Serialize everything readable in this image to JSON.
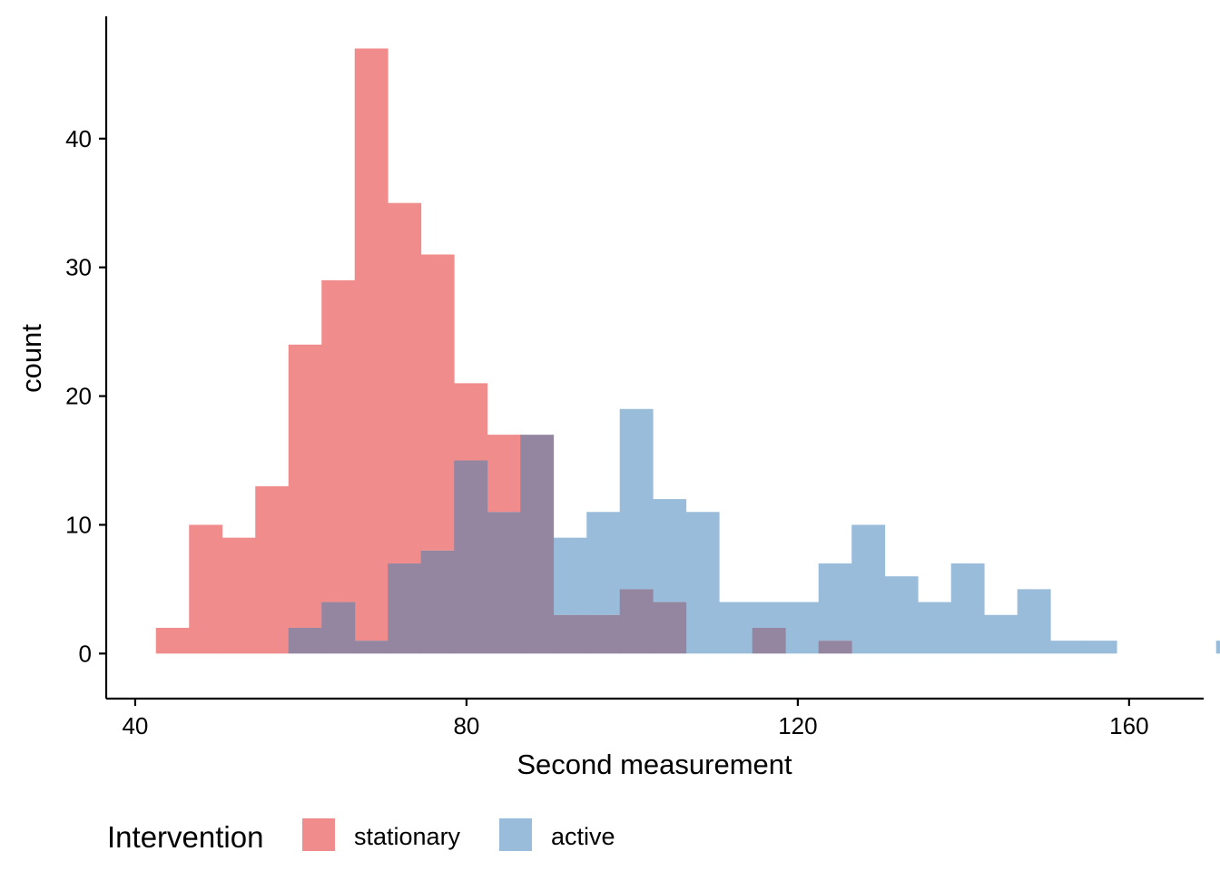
{
  "chart_data": {
    "type": "bar",
    "subtype": "overlapping-histogram",
    "title": "",
    "xlabel": "Second measurement",
    "ylabel": "count",
    "xlim": [
      36.5,
      169
    ],
    "ylim": [
      -3.5,
      49.5
    ],
    "x_ticks": [
      40,
      80,
      120,
      160
    ],
    "y_ticks": [
      0,
      10,
      20,
      30,
      40
    ],
    "grid": false,
    "bin_width": 4,
    "bin_start": 42.5,
    "legend": {
      "title": "Intervention",
      "position": "bottom"
    },
    "series": [
      {
        "name": "stationary",
        "color": "#F08C8C",
        "values": [
          2,
          10,
          9,
          13,
          24,
          29,
          47,
          35,
          31,
          21,
          17,
          17,
          3,
          3,
          5,
          4,
          0,
          0,
          2,
          0,
          1,
          0,
          0,
          0,
          0,
          0,
          0,
          0,
          0,
          0
        ]
      },
      {
        "name": "active",
        "color": "#9ABCDB",
        "values": [
          0,
          0,
          0,
          0,
          2,
          4,
          1,
          7,
          8,
          15,
          11,
          17,
          9,
          11,
          19,
          12,
          11,
          4,
          4,
          4,
          7,
          10,
          6,
          4,
          7,
          3,
          5,
          1,
          1,
          0,
          0,
          0,
          1
        ]
      }
    ],
    "overlap_color": "#9485A0"
  }
}
